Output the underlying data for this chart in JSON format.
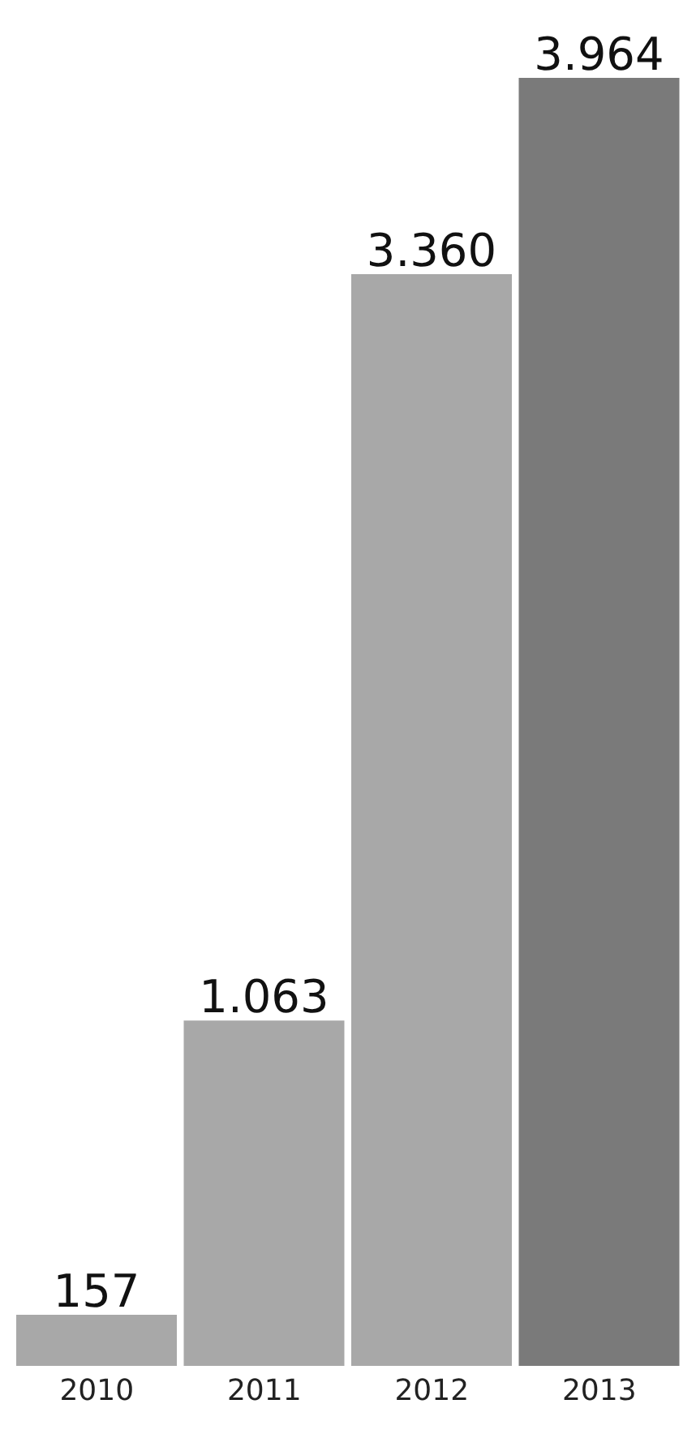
{
  "chart_data": {
    "type": "bar",
    "categories": [
      "2010",
      "2011",
      "2012",
      "2013"
    ],
    "values": [
      157,
      1063,
      3360,
      3964
    ],
    "value_labels": [
      "157",
      "1.063",
      "3.360",
      "3.964"
    ],
    "colors": [
      "#a8a8a8",
      "#a8a8a8",
      "#a8a8a8",
      "#7a7a7a"
    ]
  }
}
